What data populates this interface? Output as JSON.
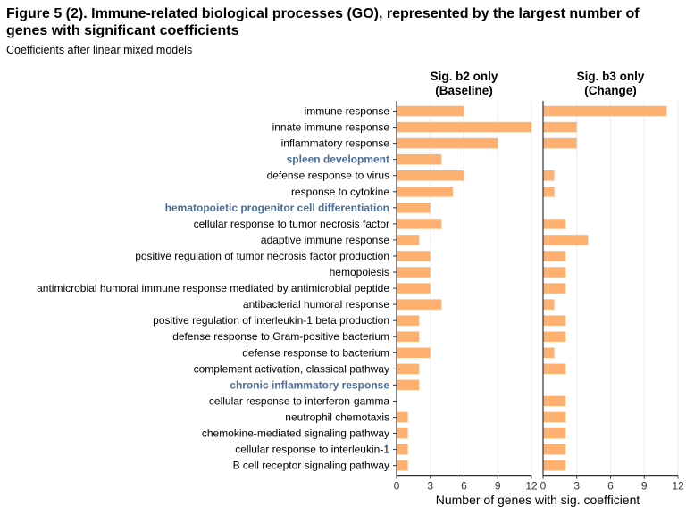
{
  "title_line1": "Figure 5 (2). Immune-related biological processes (GO), represented by the largest number of",
  "title_line2": "genes with significant coefficients",
  "subtitle": "Coefficients after linear mixed models",
  "colors": {
    "bar": "#fdb06f",
    "highlight_label": "#4a6d9a",
    "label": "#000000",
    "grid": "#ebebeb",
    "axis": "#333333"
  },
  "chart_data": {
    "type": "bar",
    "orientation": "horizontal",
    "xlabel": "Number of genes with sig. coefficient",
    "xlim": [
      0,
      12
    ],
    "xticks": [
      0,
      3,
      6,
      9,
      12
    ],
    "categories": [
      "immune response",
      "innate immune response",
      "inflammatory response",
      "spleen development",
      "defense response to virus",
      "response to cytokine",
      "hematopoietic progenitor cell differentiation",
      "cellular response to tumor necrosis factor",
      "adaptive immune response",
      "positive regulation of tumor necrosis factor production",
      "hemopoiesis",
      "antimicrobial humoral immune response mediated by antimicrobial peptide",
      "antibacterial humoral response",
      "positive regulation of interleukin-1 beta production",
      "defense response to Gram-positive bacterium",
      "defense response to bacterium",
      "complement activation, classical pathway",
      "chronic inflammatory response",
      "cellular response to interferon-gamma",
      "neutrophil chemotaxis",
      "chemokine-mediated signaling pathway",
      "cellular response to interleukin-1",
      "B cell receptor signaling pathway"
    ],
    "highlighted": [
      "spleen development",
      "hematopoietic progenitor cell differentiation",
      "chronic inflammatory response"
    ],
    "panels": [
      {
        "name": "Sig. b2 only (Baseline)",
        "title_line1": "Sig. b2 only",
        "title_line2": "(Baseline)",
        "values": [
          6,
          12,
          9,
          4,
          6,
          5,
          3,
          4,
          2,
          3,
          3,
          3,
          4,
          2,
          2,
          3,
          2,
          2,
          0,
          1,
          1,
          1,
          1
        ]
      },
      {
        "name": "Sig. b3 only (Change)",
        "title_line1": "Sig. b3 only",
        "title_line2": "(Change)",
        "values": [
          11,
          3,
          3,
          0,
          1,
          1,
          0,
          2,
          4,
          2,
          2,
          2,
          1,
          2,
          2,
          1,
          2,
          0,
          2,
          2,
          2,
          2,
          2
        ]
      }
    ]
  }
}
